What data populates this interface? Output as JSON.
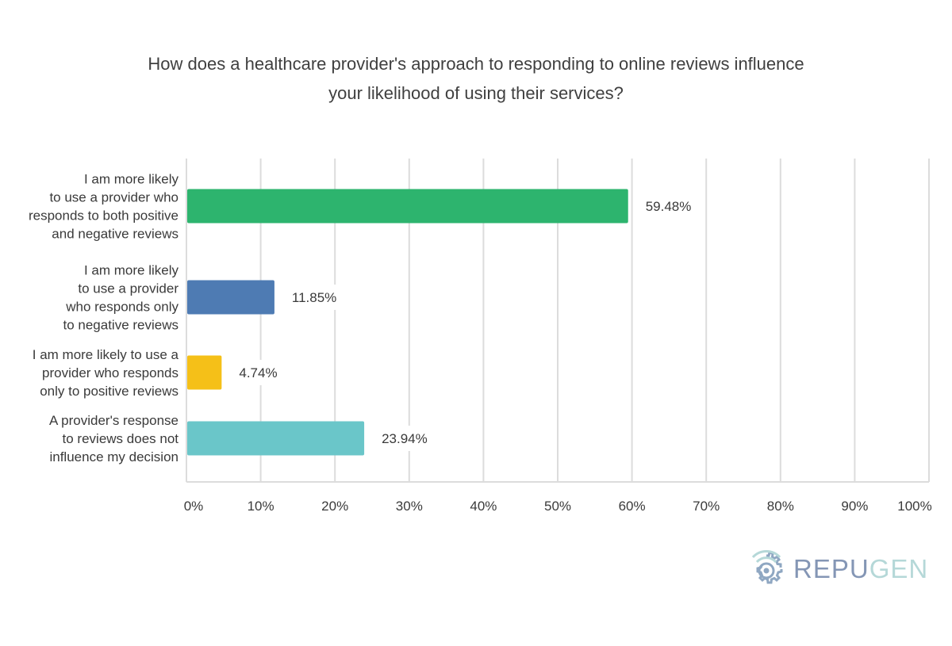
{
  "title_lines": [
    "How does a healthcare provider's approach to responding to online reviews influence",
    "your likelihood of using their services?"
  ],
  "chart_data": {
    "type": "bar",
    "orientation": "horizontal",
    "title": "How does a healthcare provider's approach to responding to online reviews influence your likelihood of using their services?",
    "categories": [
      [
        "I am more likely",
        "to use a provider who",
        "responds to both positive",
        "and negative reviews"
      ],
      [
        "I am more likely",
        "to use a provider",
        "who responds only",
        "to negative reviews"
      ],
      [
        "I am more likely to use a",
        "provider who responds",
        "only to  positive reviews"
      ],
      [
        "A provider's response",
        "to reviews does not",
        "influence my decision"
      ]
    ],
    "values": [
      59.48,
      11.85,
      4.74,
      23.94
    ],
    "value_labels": [
      "59.48%",
      "11.85%",
      "4.74%",
      "23.94%"
    ],
    "colors": [
      "#2db46e",
      "#4e7bb3",
      "#f5c018",
      "#6ac6c9"
    ],
    "xlim": [
      0,
      100
    ],
    "x_ticks": [
      0,
      10,
      20,
      30,
      40,
      50,
      60,
      70,
      80,
      90,
      100
    ],
    "x_tick_labels": [
      "0%",
      "10%",
      "20%",
      "30%",
      "40%",
      "50%",
      "60%",
      "70%",
      "80%",
      "90%",
      "100%"
    ],
    "xlabel": "",
    "ylabel": "",
    "grid": "vertical",
    "legend": "none"
  },
  "logo": {
    "icon": "signal-gear-icon",
    "text_dark": "REPU",
    "text_light": "GEN",
    "colors": {
      "dark": "#8496b5",
      "light": "#b5d8d8",
      "icon": "#8fa7c2"
    }
  }
}
